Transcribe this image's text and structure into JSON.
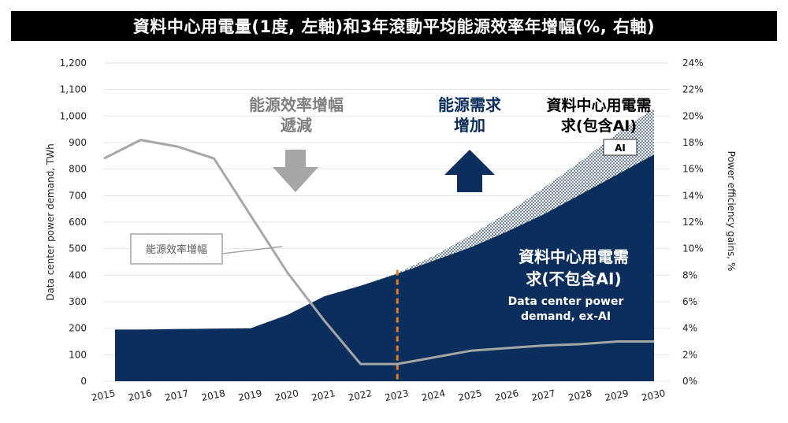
{
  "chart_data": {
    "type": "area",
    "title": "資料中心用電量(1度, 左軸)和3年滾動平均能源效率年增幅(%, 右軸)",
    "ylabel": "Data center power demand, TWh",
    "y2label": "Power efficiency gains, %",
    "categories": [
      "2015",
      "2016",
      "2017",
      "2018",
      "2019",
      "2020",
      "2021",
      "2022",
      "2023",
      "2024",
      "2025",
      "2026",
      "2027",
      "2028",
      "2029",
      "2030"
    ],
    "ylim": [
      0,
      1200
    ],
    "y2lim": [
      0,
      24
    ],
    "yticks": [
      "0",
      "100",
      "200",
      "300",
      "400",
      "500",
      "600",
      "700",
      "800",
      "900",
      "1,000",
      "1,100",
      "1,200"
    ],
    "y2ticks": [
      "0%",
      "2%",
      "4%",
      "6%",
      "8%",
      "10%",
      "12%",
      "14%",
      "16%",
      "18%",
      "20%",
      "22%",
      "24%"
    ],
    "series": [
      {
        "name": "資料中心用電需求(不包含AI)",
        "name_en": "Data center power demand, ex-AI",
        "type": "area",
        "color": "#0b2e5c",
        "values": [
          195,
          195,
          197,
          198,
          200,
          250,
          320,
          360,
          405,
          455,
          505,
          565,
          630,
          705,
          780,
          855
        ]
      },
      {
        "name": "AI",
        "type": "stacked-area-hatched",
        "color": "#0b2e5c",
        "values": [
          0,
          0,
          0,
          0,
          0,
          0,
          0,
          0,
          3,
          18,
          45,
          70,
          100,
          125,
          155,
          175
        ]
      },
      {
        "name": "能源效率增幅",
        "type": "line",
        "axis": "right",
        "color": "#a6a6a6",
        "values": [
          16.8,
          18.2,
          17.7,
          16.8,
          12.5,
          8.2,
          4.6,
          1.3,
          1.3,
          null,
          2.3,
          2.5,
          2.7,
          2.8,
          3.0,
          3.0
        ]
      }
    ],
    "forecast_marker": {
      "x": "2023",
      "color": "#e67e22"
    },
    "annotations": {
      "efficiency_down": "能源效率增幅\n遞減",
      "demand_up": "能源需求\n增加",
      "with_ai": "資料中心用電需\n求(包含AI)",
      "ai_badge": "AI",
      "ex_ai": "資料中心用電需\n求(不包含AI)",
      "ex_ai_en": "Data center power\ndemand, ex-AI",
      "line_label": "能源效率增幅"
    },
    "colors": {
      "navy": "#0b2e5c",
      "line": "#a6a6a6",
      "arrow_gray": "#a6a6a6",
      "dashed": "#e67e22"
    }
  }
}
